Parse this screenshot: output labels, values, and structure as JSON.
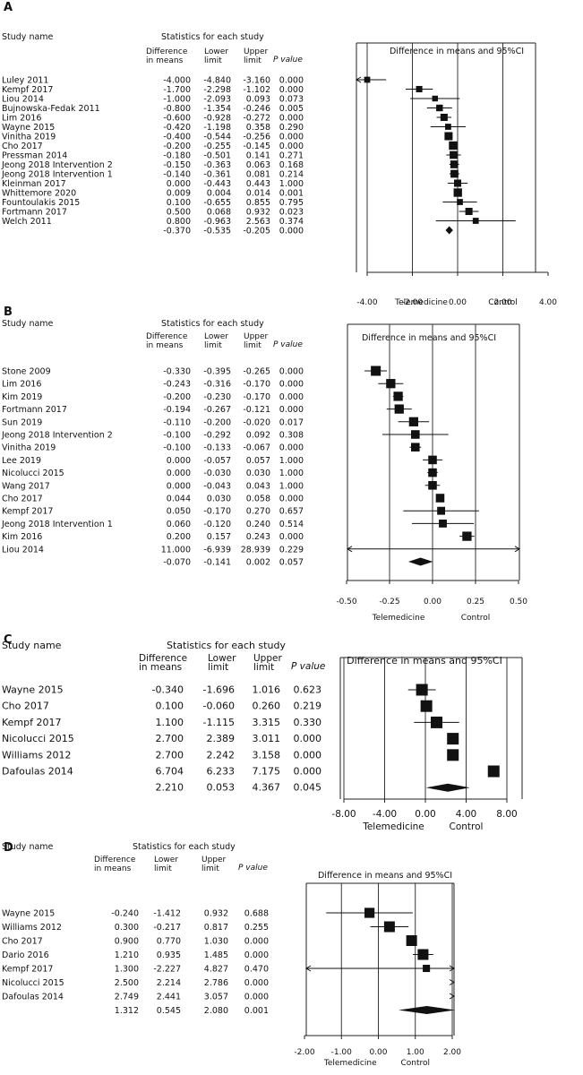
{
  "chart_data": [
    {
      "panel_label": "A",
      "type": "forest",
      "headers": {
        "study_name": "Study name",
        "stats": "Statistics for each study",
        "diff_l1": "Difference",
        "diff_l2": "in means",
        "lower_l1": "Lower",
        "lower_l2": "limit",
        "upper_l1": "Upper",
        "upper_l2": "limit",
        "pvalue": "P value",
        "plot_title": "Difference in means and 95%CI"
      },
      "xlim": [
        -4,
        4
      ],
      "ticks": [
        "-4.00",
        "-2.00",
        "0.00",
        "2.00",
        "4.00"
      ],
      "tick_values": [
        -4,
        -2,
        0,
        2,
        4
      ],
      "xlabel_left": "Telemedicine",
      "xlabel_right": "Control",
      "studies": [
        {
          "name": "Luley 2011",
          "diff": "-4.000",
          "lower": "-4.840",
          "upper": "-3.160",
          "p": "0.000",
          "w": 0.5
        },
        {
          "name": "Kempf 2017",
          "diff": "-1.700",
          "lower": "-2.298",
          "upper": "-1.102",
          "p": "0.000",
          "w": 0.55
        },
        {
          "name": "Liou 2014",
          "diff": "-1.000",
          "lower": "-2.093",
          "upper": "0.093",
          "p": "0.073",
          "w": 0.45
        },
        {
          "name": "Bujnowska-Fedak 2011",
          "diff": "-0.800",
          "lower": "-1.354",
          "upper": "-0.246",
          "p": "0.005",
          "w": 0.6
        },
        {
          "name": "Lim 2016",
          "diff": "-0.600",
          "lower": "-0.928",
          "upper": "-0.272",
          "p": "0.000",
          "w": 0.7
        },
        {
          "name": "Wayne 2015",
          "diff": "-0.420",
          "lower": "-1.198",
          "upper": "0.358",
          "p": "0.290",
          "w": 0.5
        },
        {
          "name": "Vinitha 2019",
          "diff": "-0.400",
          "lower": "-0.544",
          "upper": "-0.256",
          "p": "0.000",
          "w": 0.85
        },
        {
          "name": "Cho 2017",
          "diff": "-0.200",
          "lower": "-0.255",
          "upper": "-0.145",
          "p": "0.000",
          "w": 0.9
        },
        {
          "name": "Pressman 2014",
          "diff": "-0.180",
          "lower": "-0.501",
          "upper": "0.141",
          "p": "0.271",
          "w": 0.8
        },
        {
          "name": "Jeong 2018 Intervention 2",
          "diff": "-0.150",
          "lower": "-0.363",
          "upper": "0.063",
          "p": "0.168",
          "w": 0.8
        },
        {
          "name": "Jeong 2018 Intervention 1",
          "diff": "-0.140",
          "lower": "-0.361",
          "upper": "0.081",
          "p": "0.214",
          "w": 0.8
        },
        {
          "name": "Kleinman 2017",
          "diff": "0.000",
          "lower": "-0.443",
          "upper": "0.443",
          "p": "1.000",
          "w": 0.7
        },
        {
          "name": "Whittemore 2020",
          "diff": "0.009",
          "lower": "0.004",
          "upper": "0.014",
          "p": "0.001",
          "w": 0.9
        },
        {
          "name": "Fountoulakis 2015",
          "diff": "0.100",
          "lower": "-0.655",
          "upper": "0.855",
          "p": "0.795",
          "w": 0.5
        },
        {
          "name": "Fortmann 2017",
          "diff": "0.500",
          "lower": "0.068",
          "upper": "0.932",
          "p": "0.023",
          "w": 0.7
        },
        {
          "name": "Welch 2011",
          "diff": "0.800",
          "lower": "-0.963",
          "upper": "2.563",
          "p": "0.374",
          "w": 0.5
        }
      ],
      "summary": {
        "diff": "-0.370",
        "lower": "-0.535",
        "upper": "-0.205",
        "p": "0.000"
      }
    },
    {
      "panel_label": "B",
      "type": "forest",
      "headers": {
        "study_name": "Study name",
        "stats": "Statistics for each study",
        "diff_l1": "Difference",
        "diff_l2": "in means",
        "lower_l1": "Lower",
        "lower_l2": "limit",
        "upper_l1": "Upper",
        "upper_l2": "limit",
        "pvalue": "P value",
        "plot_title": "Difference in means and 95%CI"
      },
      "xlim": [
        -0.5,
        0.5
      ],
      "ticks": [
        "-0.50",
        "-0.25",
        "0.00",
        "0.25",
        "0.50"
      ],
      "tick_values": [
        -0.5,
        -0.25,
        0,
        0.25,
        0.5
      ],
      "xlabel_left": "Telemedicine",
      "xlabel_right": "Control",
      "studies": [
        {
          "name": "Stone 2009",
          "diff": "-0.330",
          "lower": "-0.395",
          "upper": "-0.265",
          "p": "0.000",
          "w": 1.0
        },
        {
          "name": "Lim 2016",
          "diff": "-0.243",
          "lower": "-0.316",
          "upper": "-0.170",
          "p": "0.000",
          "w": 0.9
        },
        {
          "name": "Kim 2019",
          "diff": "-0.200",
          "lower": "-0.230",
          "upper": "-0.170",
          "p": "0.000",
          "w": 0.9
        },
        {
          "name": "Fortmann 2017",
          "diff": "-0.194",
          "lower": "-0.267",
          "upper": "-0.121",
          "p": "0.000",
          "w": 0.9
        },
        {
          "name": "Sun 2019",
          "diff": "-0.110",
          "lower": "-0.200",
          "upper": "-0.020",
          "p": "0.017",
          "w": 0.9
        },
        {
          "name": "Jeong 2018 Intervention 2",
          "diff": "-0.100",
          "lower": "-0.292",
          "upper": "0.092",
          "p": "0.308",
          "w": 0.8
        },
        {
          "name": "Vinitha 2019",
          "diff": "-0.100",
          "lower": "-0.133",
          "upper": "-0.067",
          "p": "0.000",
          "w": 0.8
        },
        {
          "name": "Lee 2019",
          "diff": "0.000",
          "lower": "-0.057",
          "upper": "0.057",
          "p": "1.000",
          "w": 0.8
        },
        {
          "name": "Nicolucci 2015",
          "diff": "0.000",
          "lower": "-0.030",
          "upper": "0.030",
          "p": "1.000",
          "w": 0.8
        },
        {
          "name": "Wang 2017",
          "diff": "0.000",
          "lower": "-0.043",
          "upper": "0.043",
          "p": "1.000",
          "w": 0.8
        },
        {
          "name": "Cho 2017",
          "diff": "0.044",
          "lower": "0.030",
          "upper": "0.058",
          "p": "0.000",
          "w": 0.8
        },
        {
          "name": "Kempf 2017",
          "diff": "0.050",
          "lower": "-0.170",
          "upper": "0.270",
          "p": "0.657",
          "w": 0.7
        },
        {
          "name": "Jeong 2018 Intervention 1",
          "diff": "0.060",
          "lower": "-0.120",
          "upper": "0.240",
          "p": "0.514",
          "w": 0.7
        },
        {
          "name": "Kim 2016",
          "diff": "0.200",
          "lower": "0.157",
          "upper": "0.243",
          "p": "0.000",
          "w": 0.9
        },
        {
          "name": "Liou 2014",
          "diff": "11.000",
          "lower": "-6.939",
          "upper": "28.939",
          "p": "0.229",
          "w": 0.0
        }
      ],
      "summary": {
        "diff": "-0.070",
        "lower": "-0.141",
        "upper": "0.002",
        "p": "0.057"
      }
    },
    {
      "panel_label": "C",
      "type": "forest",
      "headers": {
        "study_name": "Study name",
        "stats": "Statistics for each study",
        "diff_l1": "Difference",
        "diff_l2": "in means",
        "lower_l1": "Lower",
        "lower_l2": "limit",
        "upper_l1": "Upper",
        "upper_l2": "limit",
        "pvalue": "P value",
        "plot_title": "Difference in means and 95%CI"
      },
      "xlim": [
        -8,
        8
      ],
      "ticks": [
        "-8.00",
        "-4.00",
        "0.00",
        "4.00",
        "8.00"
      ],
      "tick_values": [
        -8,
        -4,
        0,
        4,
        8
      ],
      "xlabel_left": "Telemedicine",
      "xlabel_right": "Control",
      "studies": [
        {
          "name": "Wayne 2015",
          "diff": "-0.340",
          "lower": "-1.696",
          "upper": "1.016",
          "p": "0.623",
          "w": 1.0
        },
        {
          "name": "Cho 2017",
          "diff": "0.100",
          "lower": "-0.060",
          "upper": "0.260",
          "p": "0.219",
          "w": 1.0
        },
        {
          "name": "Kempf 2017",
          "diff": "1.100",
          "lower": "-1.115",
          "upper": "3.315",
          "p": "0.330",
          "w": 1.0
        },
        {
          "name": "Nicolucci 2015",
          "diff": "2.700",
          "lower": "2.389",
          "upper": "3.011",
          "p": "0.000",
          "w": 1.0
        },
        {
          "name": "Williams 2012",
          "diff": "2.700",
          "lower": "2.242",
          "upper": "3.158",
          "p": "0.000",
          "w": 1.0
        },
        {
          "name": "Dafoulas 2014",
          "diff": "6.704",
          "lower": "6.233",
          "upper": "7.175",
          "p": "0.000",
          "w": 1.0
        }
      ],
      "summary": {
        "diff": "2.210",
        "lower": "0.053",
        "upper": "4.367",
        "p": "0.045"
      }
    },
    {
      "panel_label": "D",
      "type": "forest",
      "headers": {
        "study_name": "Study name",
        "stats": "Statistics for each study",
        "diff_l1": "Difference",
        "diff_l2": "in means",
        "lower_l1": "Lower",
        "lower_l2": "limit",
        "upper_l1": "Upper",
        "upper_l2": "limit",
        "pvalue": "P value",
        "plot_title": "Difference in means and 95%CI"
      },
      "xlim": [
        -2,
        2
      ],
      "ticks": [
        "-2.00",
        "-1.00",
        "0.00",
        "1.00",
        "2.00"
      ],
      "tick_values": [
        -2,
        -1,
        0,
        1,
        2
      ],
      "xlabel_left": "Telemedicine",
      "xlabel_right": "Control",
      "studies": [
        {
          "name": "Wayne 2015",
          "diff": "-0.240",
          "lower": "-1.412",
          "upper": "0.932",
          "p": "0.688",
          "w": 0.9
        },
        {
          "name": "Williams 2012",
          "diff": "0.300",
          "lower": "-0.217",
          "upper": "0.817",
          "p": "0.255",
          "w": 1.0
        },
        {
          "name": "Cho 2017",
          "diff": "0.900",
          "lower": "0.770",
          "upper": "1.030",
          "p": "0.000",
          "w": 1.0
        },
        {
          "name": "Dario 2016",
          "diff": "1.210",
          "lower": "0.935",
          "upper": "1.485",
          "p": "0.000",
          "w": 1.0
        },
        {
          "name": "Kempf 2017",
          "diff": "1.300",
          "lower": "-2.227",
          "upper": "4.827",
          "p": "0.470",
          "w": 0.5
        },
        {
          "name": "Nicolucci 2015",
          "diff": "2.500",
          "lower": "2.214",
          "upper": "2.786",
          "p": "0.000",
          "w": 0.0
        },
        {
          "name": "Dafoulas 2014",
          "diff": "2.749",
          "lower": "2.441",
          "upper": "3.057",
          "p": "0.000",
          "w": 0.0
        }
      ],
      "summary": {
        "diff": "1.312",
        "lower": "0.545",
        "upper": "2.080",
        "p": "0.001"
      }
    }
  ]
}
